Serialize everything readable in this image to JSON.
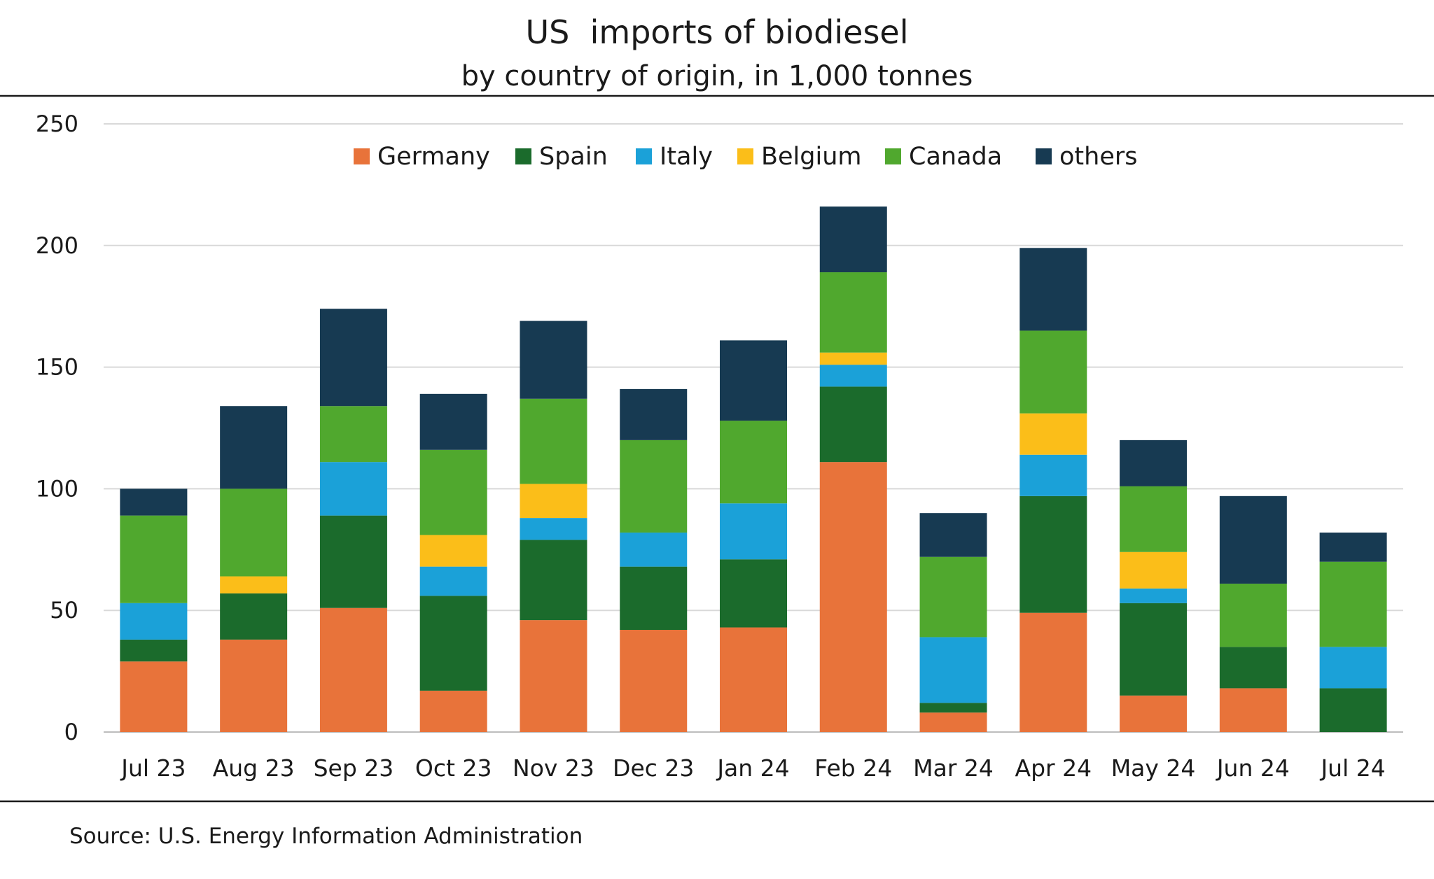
{
  "chart_data": {
    "type": "bar",
    "stacked": true,
    "title": "US  imports of biodiesel",
    "subtitle": "by country of origin, in 1,000 tonnes",
    "source": "Source: U.S. Energy Information Administration",
    "categories": [
      "Jul 23",
      "Aug 23",
      "Sep 23",
      "Oct 23",
      "Nov 23",
      "Dec 23",
      "Jan 24",
      "Feb 24",
      "Mar 24",
      "Apr 24",
      "May 24",
      "Jun 24",
      "Jul 24"
    ],
    "ylim": [
      0,
      250
    ],
    "yticks": [
      0,
      50,
      100,
      150,
      200,
      250
    ],
    "grid": true,
    "legend_position": "top",
    "series": [
      {
        "name": "Germany",
        "color": "#E8733A",
        "values": [
          29,
          38,
          51,
          17,
          46,
          42,
          43,
          111,
          8,
          49,
          15,
          18,
          0
        ]
      },
      {
        "name": "Spain",
        "color": "#1B6B2C",
        "values": [
          9,
          19,
          38,
          39,
          33,
          26,
          28,
          31,
          4,
          48,
          38,
          17,
          18
        ]
      },
      {
        "name": "Italy",
        "color": "#1BA1D8",
        "values": [
          15,
          0,
          22,
          12,
          9,
          14,
          23,
          9,
          27,
          17,
          6,
          0,
          17
        ]
      },
      {
        "name": "Belgium",
        "color": "#FBBE19",
        "values": [
          0,
          7,
          0,
          13,
          14,
          0,
          0,
          5,
          0,
          17,
          15,
          0,
          0
        ]
      },
      {
        "name": "Canada",
        "color": "#50A82E",
        "values": [
          36,
          36,
          23,
          35,
          35,
          38,
          34,
          33,
          33,
          34,
          27,
          26,
          35
        ]
      },
      {
        "name": "others",
        "color": "#173A52",
        "values": [
          11,
          34,
          40,
          23,
          32,
          21,
          33,
          27,
          18,
          34,
          19,
          36,
          12
        ]
      }
    ]
  }
}
